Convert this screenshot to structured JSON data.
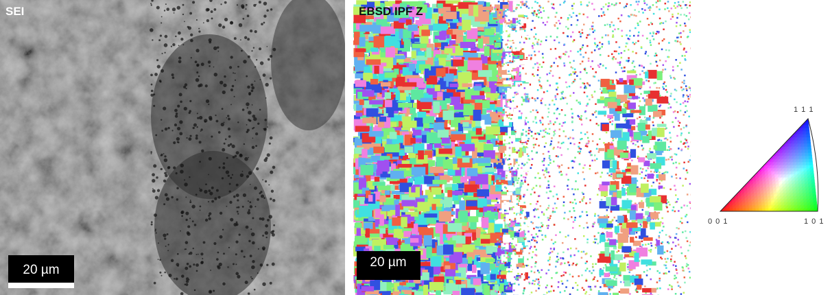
{
  "panels": [
    {
      "label": "SEI",
      "scale_bar": "20 µm"
    },
    {
      "label": "EBSD IPF Z",
      "scale_bar": "20 µm"
    }
  ],
  "legend": {
    "corners": [
      "0 0 1",
      "1 0 1",
      "1 1 1"
    ]
  }
}
